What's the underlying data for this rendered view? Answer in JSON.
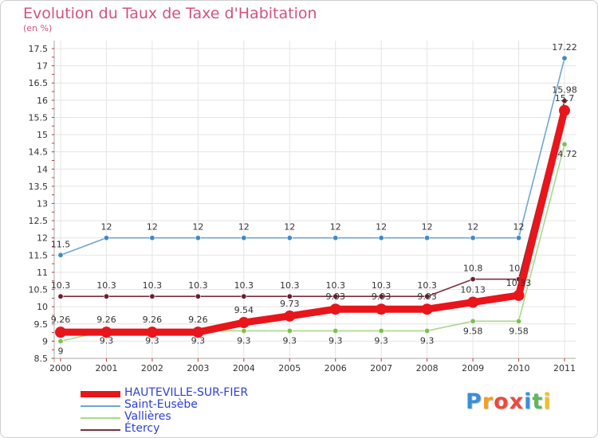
{
  "title": "Evolution du Taux de Taxe d'Habitation",
  "subtitle": "(en %)",
  "logo": {
    "text": "Proxiti",
    "letters": [
      {
        "ch": "P",
        "color": "#3a8fd6"
      },
      {
        "ch": "r",
        "color": "#f0a020"
      },
      {
        "ch": "o",
        "color": "#e94b3c"
      },
      {
        "ch": "x",
        "color": "#e94b3c"
      },
      {
        "ch": "i",
        "color": "#3a8fd6"
      },
      {
        "ch": "t",
        "color": "#5cb85c"
      },
      {
        "ch": "i",
        "color": "#f0c020"
      }
    ]
  },
  "chart_data": {
    "type": "line",
    "title": "Evolution du Taux de Taxe d'Habitation",
    "ylabel": "(en %)",
    "xlabel": "",
    "x": [
      2000,
      2001,
      2002,
      2003,
      2004,
      2005,
      2006,
      2007,
      2008,
      2009,
      2010,
      2011
    ],
    "ylim": [
      8.5,
      17.5
    ],
    "yticks": [
      8.5,
      9,
      9.5,
      10,
      10.5,
      11,
      11.5,
      12,
      12.5,
      13,
      13.5,
      14,
      14.5,
      15,
      15.5,
      16,
      16.5,
      17,
      17.5
    ],
    "ytick_labels": [
      "8.5",
      "9",
      "9.5",
      "10",
      "10.5",
      "11",
      "11.5",
      "12",
      "12.5",
      "13",
      "13.5",
      "14",
      "14.5",
      "15",
      "15.5",
      "16",
      "16.5",
      "17",
      "17.5"
    ],
    "grid": true,
    "legend_position": "bottom-left",
    "series": [
      {
        "name": "Saint-Eusèbe",
        "color": "#6fa6d1",
        "marker": "#3f8ac9",
        "values": [
          11.5,
          12,
          12,
          12,
          12,
          12,
          12,
          12,
          12,
          12,
          12,
          17.22
        ],
        "labels": [
          "11.5",
          "12",
          "12",
          "12",
          "12",
          "12",
          "12",
          "12",
          "12",
          "12",
          "12",
          "17.22"
        ]
      },
      {
        "name": "Vallières",
        "color": "#a7d98a",
        "marker": "#7cc24f",
        "values": [
          9,
          9.3,
          9.3,
          9.3,
          9.3,
          9.3,
          9.3,
          9.3,
          9.3,
          9.58,
          9.58,
          14.72
        ],
        "labels": [
          "9",
          "9.3",
          "9.3",
          "9.3",
          "9.3",
          "9.3",
          "9.3",
          "9.3",
          "9.3",
          "9.58",
          "9.58",
          "14.72"
        ]
      },
      {
        "name": "Étercy",
        "color": "#7a2f3f",
        "marker": "#6a1f2f",
        "values": [
          10.3,
          10.3,
          10.3,
          10.3,
          10.3,
          10.3,
          10.3,
          10.3,
          10.3,
          10.8,
          10.8,
          15.98
        ],
        "labels": [
          "10.3",
          "10.3",
          "10.3",
          "10.3",
          "10.3",
          "10.3",
          "10.3",
          "10.3",
          "10.3",
          "10.8",
          "10.8",
          "15.98"
        ]
      },
      {
        "name": "HAUTEVILLE-SUR-FIER",
        "color": "#e8151b",
        "marker": "#e8151b",
        "values": [
          9.26,
          9.26,
          9.26,
          9.26,
          9.54,
          9.73,
          9.93,
          9.93,
          9.93,
          10.13,
          10.33,
          15.7
        ],
        "labels": [
          "9.26",
          "9.26",
          "9.26",
          "9.26",
          "9.54",
          "9.73",
          "9.93",
          "9.93",
          "9.93",
          "10.13",
          "10.33",
          "15.7"
        ]
      }
    ],
    "legend_order": [
      "HAUTEVILLE-SUR-FIER",
      "Saint-Eusèbe",
      "Vallières",
      "Étercy"
    ]
  }
}
